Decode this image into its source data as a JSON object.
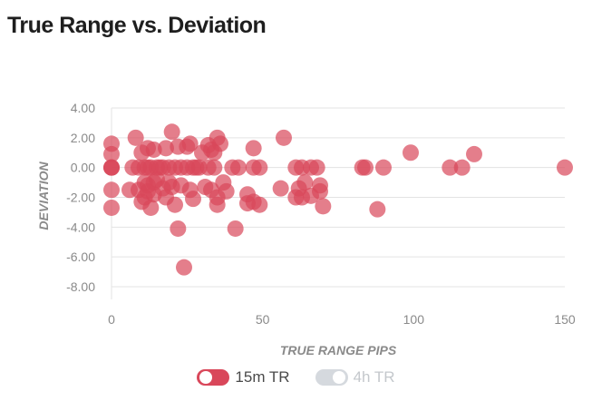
{
  "title": "True Range vs. Deviation",
  "chart_data": {
    "type": "scatter",
    "xlabel": "TRUE RANGE PIPS",
    "ylabel": "DEVIATION",
    "xlim": [
      0,
      150
    ],
    "ylim": [
      -8,
      4
    ],
    "x_ticks": [
      "0",
      "50",
      "100",
      "150"
    ],
    "y_ticks": [
      "4.00",
      "2.00",
      "0.00",
      "-2.00",
      "-4.00",
      "-6.00",
      "-8.00"
    ],
    "grid": true,
    "legend_position": "bottom",
    "series": [
      {
        "name": "15m TR",
        "color": "#d9475a",
        "enabled": true,
        "points": [
          [
            0,
            1.6
          ],
          [
            0,
            0.9
          ],
          [
            0,
            0
          ],
          [
            0,
            0
          ],
          [
            0,
            0
          ],
          [
            0,
            -1.5
          ],
          [
            0,
            -2.7
          ],
          [
            6,
            -1.5
          ],
          [
            7,
            0
          ],
          [
            8,
            2.0
          ],
          [
            9,
            -1.5
          ],
          [
            9,
            0
          ],
          [
            10,
            -2.3
          ],
          [
            10,
            1.0
          ],
          [
            11,
            0
          ],
          [
            11,
            -1.0
          ],
          [
            11,
            -2.0
          ],
          [
            12,
            0
          ],
          [
            12,
            -1.2
          ],
          [
            12,
            -1.6
          ],
          [
            12,
            1.3
          ],
          [
            13,
            -2.7
          ],
          [
            13,
            0
          ],
          [
            14,
            -1.8
          ],
          [
            14,
            -1.0
          ],
          [
            14,
            1.2
          ],
          [
            15,
            0
          ],
          [
            15,
            -0.8
          ],
          [
            16,
            0
          ],
          [
            17,
            -1.4
          ],
          [
            17,
            0
          ],
          [
            18,
            -2.0
          ],
          [
            18,
            1.3
          ],
          [
            19,
            0
          ],
          [
            19,
            -1.0
          ],
          [
            20,
            2.4
          ],
          [
            20,
            -1.3
          ],
          [
            21,
            -2.5
          ],
          [
            21,
            0
          ],
          [
            22,
            -4.1
          ],
          [
            22,
            1.4
          ],
          [
            23,
            0
          ],
          [
            23,
            -1.2
          ],
          [
            24,
            -6.7
          ],
          [
            25,
            1.4
          ],
          [
            25,
            0
          ],
          [
            26,
            -1.5
          ],
          [
            26,
            1.6
          ],
          [
            27,
            -2.1
          ],
          [
            27,
            0
          ],
          [
            28,
            0
          ],
          [
            29,
            0
          ],
          [
            30,
            1.0
          ],
          [
            31,
            -1.3
          ],
          [
            32,
            0
          ],
          [
            32,
            1.5
          ],
          [
            33,
            1.2
          ],
          [
            33,
            -1.5
          ],
          [
            34,
            0
          ],
          [
            34,
            1.0
          ],
          [
            35,
            2.0
          ],
          [
            35,
            -2.0
          ],
          [
            35,
            -2.5
          ],
          [
            36,
            1.6
          ],
          [
            37,
            -1.0
          ],
          [
            38,
            -1.6
          ],
          [
            40,
            0
          ],
          [
            41,
            -4.1
          ],
          [
            42,
            0
          ],
          [
            45,
            -1.8
          ],
          [
            45,
            -2.4
          ],
          [
            47,
            1.3
          ],
          [
            47,
            0
          ],
          [
            47,
            -2.3
          ],
          [
            49,
            0
          ],
          [
            49,
            -2.5
          ],
          [
            56,
            -1.4
          ],
          [
            57,
            2.0
          ],
          [
            61,
            0
          ],
          [
            61,
            -2.0
          ],
          [
            62,
            -1.4
          ],
          [
            63,
            0
          ],
          [
            63,
            -2.0
          ],
          [
            64,
            -1.0
          ],
          [
            66,
            0
          ],
          [
            66,
            -1.9
          ],
          [
            68,
            0
          ],
          [
            69,
            -1.2
          ],
          [
            69,
            -1.6
          ],
          [
            70,
            -2.6
          ],
          [
            83,
            0
          ],
          [
            84,
            0
          ],
          [
            88,
            -2.8
          ],
          [
            90,
            0
          ],
          [
            99,
            1.0
          ],
          [
            112,
            0
          ],
          [
            116,
            0
          ],
          [
            120,
            0.9
          ],
          [
            150,
            0
          ]
        ]
      },
      {
        "name": "4h TR",
        "color": "#d5d9de",
        "enabled": false,
        "points": []
      }
    ]
  }
}
